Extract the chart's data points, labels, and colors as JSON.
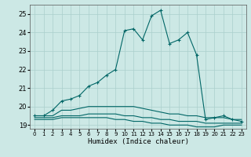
{
  "xlabel": "Humidex (Indice chaleur)",
  "bg_color": "#cce8e5",
  "grid_color": "#aacfcc",
  "line_color": "#006666",
  "xlim": [
    -0.5,
    23.5
  ],
  "ylim": [
    18.8,
    25.5
  ],
  "yticks": [
    19,
    20,
    21,
    22,
    23,
    24,
    25
  ],
  "xticks": [
    0,
    1,
    2,
    3,
    4,
    5,
    6,
    7,
    8,
    9,
    10,
    11,
    12,
    13,
    14,
    15,
    16,
    17,
    18,
    19,
    20,
    21,
    22,
    23
  ],
  "curves": [
    {
      "x": [
        0,
        1,
        2,
        3,
        4,
        5,
        6,
        7,
        8,
        9,
        10,
        11,
        12,
        13,
        14,
        15,
        16,
        17,
        18,
        19,
        20,
        21,
        22,
        23
      ],
      "y": [
        19.5,
        19.5,
        19.8,
        20.3,
        20.4,
        20.6,
        21.1,
        21.3,
        21.7,
        22.0,
        24.1,
        24.2,
        23.6,
        24.9,
        25.2,
        23.4,
        23.6,
        24.0,
        22.8,
        19.3,
        19.4,
        19.5,
        19.3,
        19.2
      ],
      "marker": "+"
    },
    {
      "x": [
        0,
        1,
        2,
        3,
        4,
        5,
        6,
        7,
        8,
        9,
        10,
        11,
        12,
        13,
        14,
        15,
        16,
        17,
        18,
        19,
        20,
        21,
        22,
        23
      ],
      "y": [
        19.5,
        19.5,
        19.5,
        19.8,
        19.8,
        19.9,
        20.0,
        20.0,
        20.0,
        20.0,
        20.0,
        20.0,
        19.9,
        19.8,
        19.7,
        19.6,
        19.6,
        19.5,
        19.5,
        19.4,
        19.4,
        19.4,
        19.3,
        19.3
      ],
      "marker": null
    },
    {
      "x": [
        0,
        1,
        2,
        3,
        4,
        5,
        6,
        7,
        8,
        9,
        10,
        11,
        12,
        13,
        14,
        15,
        16,
        17,
        18,
        19,
        20,
        21,
        22,
        23
      ],
      "y": [
        19.4,
        19.4,
        19.4,
        19.5,
        19.5,
        19.5,
        19.6,
        19.6,
        19.6,
        19.6,
        19.5,
        19.5,
        19.4,
        19.4,
        19.3,
        19.3,
        19.2,
        19.2,
        19.2,
        19.1,
        19.1,
        19.1,
        19.1,
        19.1
      ],
      "marker": null
    },
    {
      "x": [
        0,
        1,
        2,
        3,
        4,
        5,
        6,
        7,
        8,
        9,
        10,
        11,
        12,
        13,
        14,
        15,
        16,
        17,
        18,
        19,
        20,
        21,
        22,
        23
      ],
      "y": [
        19.3,
        19.3,
        19.3,
        19.4,
        19.4,
        19.4,
        19.4,
        19.4,
        19.4,
        19.3,
        19.3,
        19.2,
        19.2,
        19.1,
        19.1,
        19.0,
        19.0,
        19.0,
        18.9,
        18.9,
        18.9,
        19.0,
        19.0,
        19.0
      ],
      "marker": null
    }
  ]
}
